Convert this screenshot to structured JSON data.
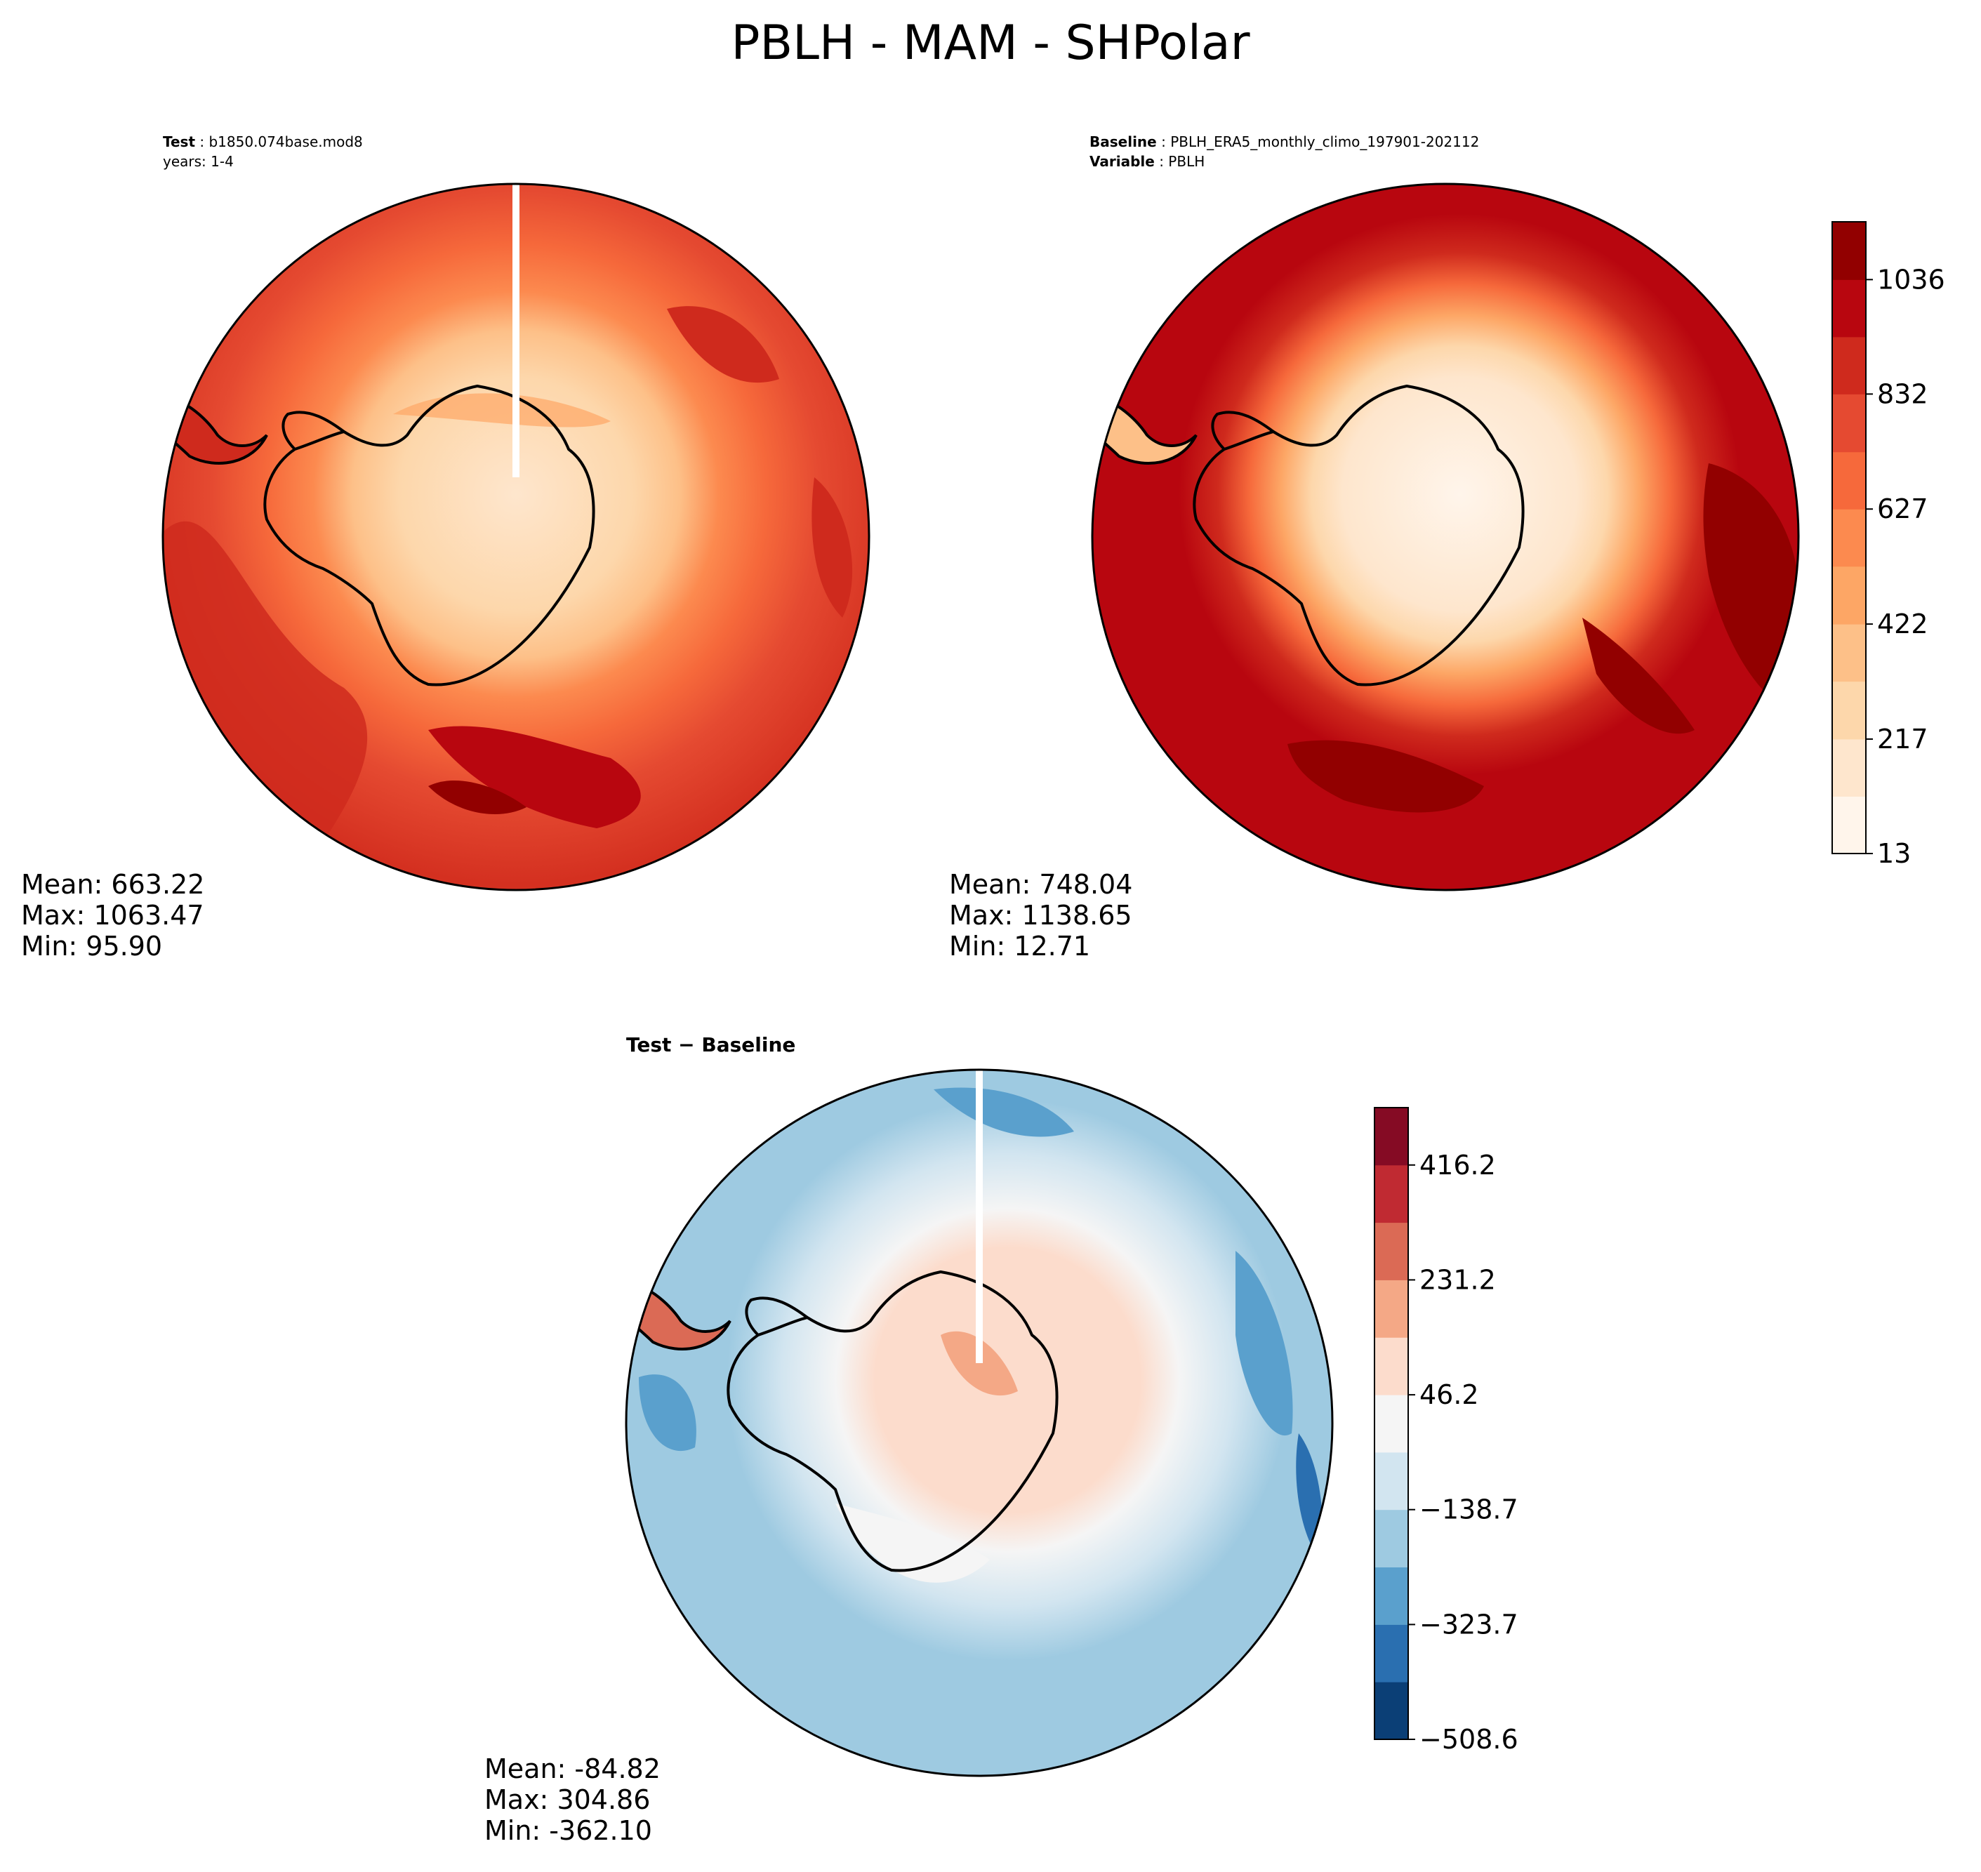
{
  "figure": {
    "title": "PBLH - MAM - SHPolar"
  },
  "test_panel": {
    "label": "Test",
    "case": "b1850.074base.mod8",
    "years": "years: 1-4",
    "mean": "Mean: 663.22",
    "max": "Max: 1063.47",
    "min": "Min: 95.90"
  },
  "baseline_panel": {
    "label": "Baseline",
    "case": "PBLH_ERA5_monthly_climo_197901-202112",
    "variable_label": "Variable",
    "variable": "PBLH",
    "mean": "Mean: 748.04",
    "max": "Max: 1138.65",
    "min": "Min: 12.71"
  },
  "diff_panel": {
    "title": "Test − Baseline",
    "mean": "Mean: -84.82",
    "max": "Max: 304.86",
    "min": "Min: -362.10"
  },
  "chart_data": [
    {
      "type": "heatmap",
      "projection": "south-polar-stereographic",
      "panel": "test",
      "colormap": "Reds",
      "levels": [
        13,
        115,
        217,
        320,
        422,
        525,
        627,
        729,
        832,
        934,
        1036,
        1139
      ],
      "colorbar_ticks": [
        "13",
        "217",
        "422",
        "627",
        "832",
        "1036"
      ]
    },
    {
      "type": "heatmap",
      "projection": "south-polar-stereographic",
      "panel": "baseline",
      "colormap": "Reds",
      "levels": [
        13,
        115,
        217,
        320,
        422,
        525,
        627,
        729,
        832,
        934,
        1036,
        1139
      ],
      "colorbar_ticks": [
        "13",
        "217",
        "422",
        "627",
        "832",
        "1036"
      ],
      "colorbar_colors": [
        "#fff5eb",
        "#fee6cd",
        "#fdd7ab",
        "#fdc088",
        "#fda665",
        "#fc8a4f",
        "#f6693b",
        "#e54a31",
        "#cf2a1d",
        "#b8060f",
        "#920000"
      ]
    },
    {
      "type": "heatmap",
      "projection": "south-polar-stereographic",
      "panel": "test-minus-baseline",
      "colormap": "RdBu_r",
      "levels": [
        -508.6,
        -416.1,
        -323.7,
        -231.2,
        -138.7,
        -46.2,
        46.2,
        138.7,
        231.2,
        323.7,
        416.2,
        508.6
      ],
      "colorbar_ticks": [
        "−508.6",
        "−323.7",
        "−138.7",
        "46.2",
        "231.2",
        "416.2"
      ],
      "colorbar_colors": [
        "#0b3f76",
        "#2a6fb0",
        "#5aa0cd",
        "#9ecae1",
        "#d2e5f0",
        "#f5f5f5",
        "#fcdccc",
        "#f4a886",
        "#db6a55",
        "#c02a32",
        "#850b24"
      ]
    }
  ]
}
